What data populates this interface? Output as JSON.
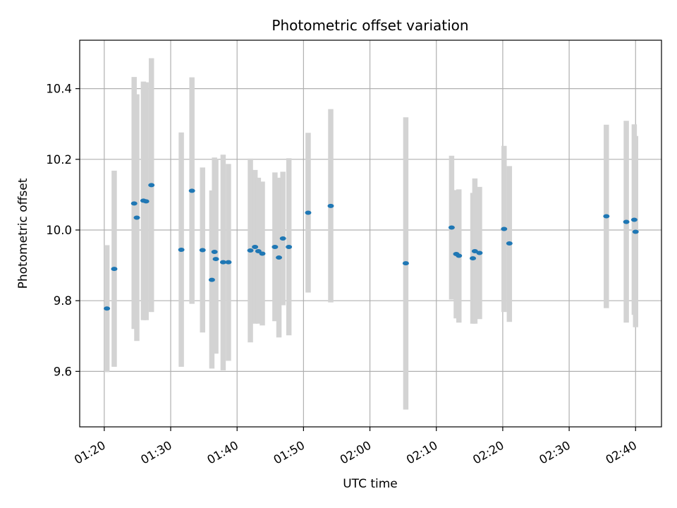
{
  "chart_data": {
    "type": "scatter",
    "title": "Photometric offset variation",
    "xlabel": "UTC time",
    "ylabel": "Photometric offset",
    "x_unit": "minutes",
    "xlim": [
      "01:16.3",
      "02:43.9"
    ],
    "ylim": [
      9.443,
      10.537
    ],
    "x_ticks": [
      "01:20",
      "01:30",
      "01:40",
      "01:50",
      "02:00",
      "02:10",
      "02:20",
      "02:30",
      "02:40"
    ],
    "y_ticks": [
      "9.6",
      "9.8",
      "10.0",
      "10.2",
      "10.4"
    ],
    "grid": true,
    "colors": {
      "point": "#1f77b4",
      "errorbar": "#d3d3d3",
      "grid": "#b0b0b0"
    },
    "points": [
      {
        "x": "01:20.4",
        "y": 9.778,
        "err_low": 9.598,
        "err_high": 9.957
      },
      {
        "x": "01:21.5",
        "y": 9.89,
        "err_low": 9.613,
        "err_high": 10.168
      },
      {
        "x": "01:24.5",
        "y": 10.075,
        "err_low": 9.72,
        "err_high": 10.433
      },
      {
        "x": "01:24.9",
        "y": 10.035,
        "err_low": 9.686,
        "err_high": 10.384
      },
      {
        "x": "01:25.9",
        "y": 10.083,
        "err_low": 9.745,
        "err_high": 10.42
      },
      {
        "x": "01:26.3",
        "y": 10.081,
        "err_low": 9.745,
        "err_high": 10.418
      },
      {
        "x": "01:27.1",
        "y": 10.127,
        "err_low": 9.768,
        "err_high": 10.486
      },
      {
        "x": "01:31.6",
        "y": 9.944,
        "err_low": 9.613,
        "err_high": 10.276
      },
      {
        "x": "01:33.2",
        "y": 10.111,
        "err_low": 9.791,
        "err_high": 10.432
      },
      {
        "x": "01:34.8",
        "y": 9.943,
        "err_low": 9.71,
        "err_high": 10.177
      },
      {
        "x": "01:36.2",
        "y": 9.859,
        "err_low": 9.608,
        "err_high": 10.112
      },
      {
        "x": "01:36.6",
        "y": 9.938,
        "err_low": 9.661,
        "err_high": 10.205
      },
      {
        "x": "01:36.8",
        "y": 9.918,
        "err_low": 9.65,
        "err_high": 10.2
      },
      {
        "x": "01:37.9",
        "y": 9.909,
        "err_low": 9.603,
        "err_high": 10.213
      },
      {
        "x": "01:38.7",
        "y": 9.909,
        "err_low": 9.63,
        "err_high": 10.187
      },
      {
        "x": "01:42.0",
        "y": 9.942,
        "err_low": 9.682,
        "err_high": 10.202
      },
      {
        "x": "01:42.7",
        "y": 9.952,
        "err_low": 9.735,
        "err_high": 10.17
      },
      {
        "x": "01:43.2",
        "y": 9.94,
        "err_low": 9.735,
        "err_high": 10.148
      },
      {
        "x": "01:43.8",
        "y": 9.933,
        "err_low": 9.73,
        "err_high": 10.137
      },
      {
        "x": "01:45.7",
        "y": 9.952,
        "err_low": 9.742,
        "err_high": 10.163
      },
      {
        "x": "01:46.3",
        "y": 9.922,
        "err_low": 9.696,
        "err_high": 10.148
      },
      {
        "x": "01:46.9",
        "y": 9.976,
        "err_low": 9.787,
        "err_high": 10.165
      },
      {
        "x": "01:47.8",
        "y": 9.952,
        "err_low": 9.702,
        "err_high": 10.203
      },
      {
        "x": "01:50.7",
        "y": 10.049,
        "err_low": 9.823,
        "err_high": 10.275
      },
      {
        "x": "01:54.1",
        "y": 10.068,
        "err_low": 9.795,
        "err_high": 10.342
      },
      {
        "x": "02:05.4",
        "y": 9.906,
        "err_low": 9.492,
        "err_high": 10.319
      },
      {
        "x": "02:12.3",
        "y": 10.007,
        "err_low": 9.803,
        "err_high": 10.21
      },
      {
        "x": "02:13.0",
        "y": 9.932,
        "err_low": 9.75,
        "err_high": 10.113
      },
      {
        "x": "02:13.4",
        "y": 9.927,
        "err_low": 9.738,
        "err_high": 10.115
      },
      {
        "x": "02:15.5",
        "y": 9.92,
        "err_low": 9.735,
        "err_high": 10.105
      },
      {
        "x": "02:15.8",
        "y": 9.94,
        "err_low": 9.735,
        "err_high": 10.146
      },
      {
        "x": "02:16.5",
        "y": 9.935,
        "err_low": 9.748,
        "err_high": 10.122
      },
      {
        "x": "02:20.2",
        "y": 10.003,
        "err_low": 9.768,
        "err_high": 10.238
      },
      {
        "x": "02:21.0",
        "y": 9.962,
        "err_low": 9.74,
        "err_high": 10.181
      },
      {
        "x": "02:35.6",
        "y": 10.039,
        "err_low": 9.779,
        "err_high": 10.298
      },
      {
        "x": "02:38.6",
        "y": 10.023,
        "err_low": 9.738,
        "err_high": 10.309
      },
      {
        "x": "02:39.8",
        "y": 10.029,
        "err_low": 9.76,
        "err_high": 10.299
      },
      {
        "x": "02:40.0",
        "y": 9.995,
        "err_low": 9.725,
        "err_high": 10.266
      }
    ]
  }
}
